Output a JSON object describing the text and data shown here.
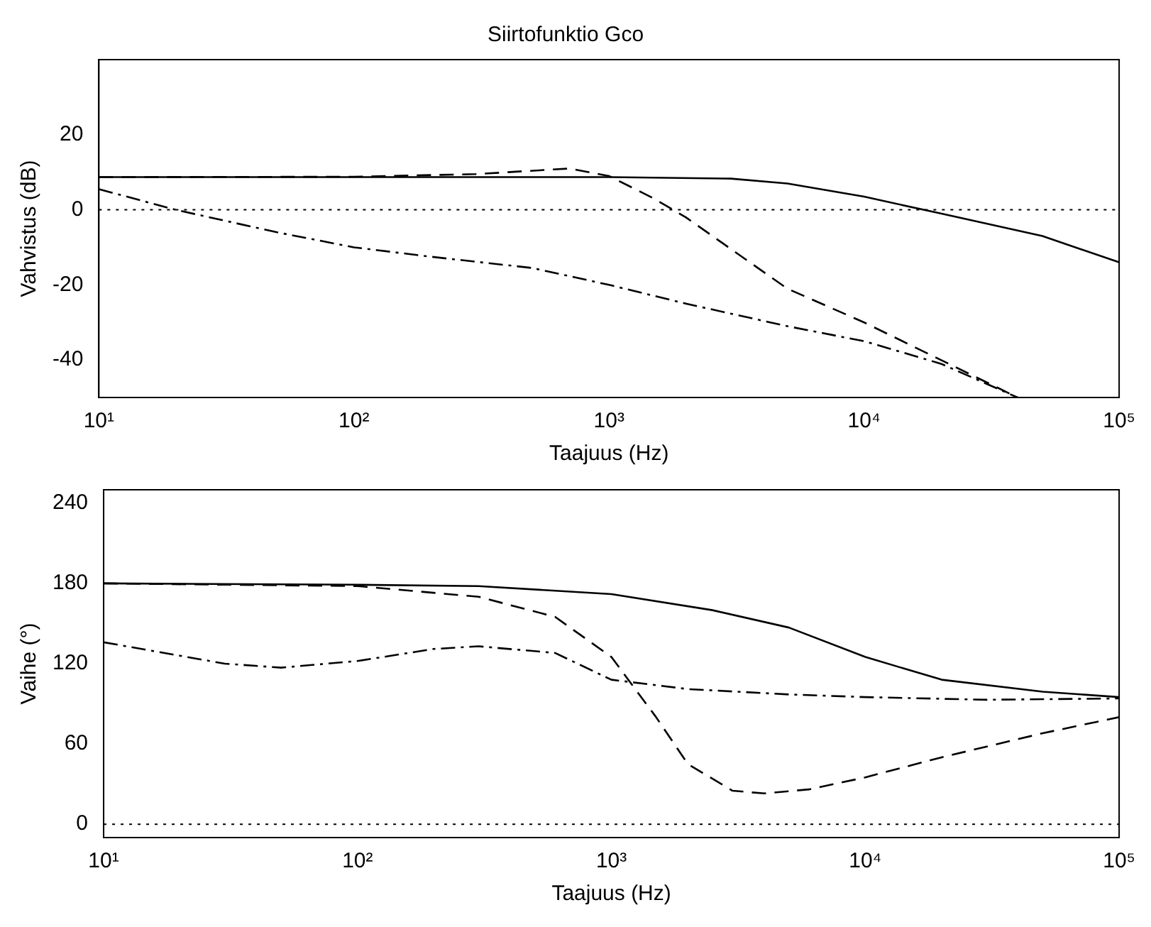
{
  "chart_data": [
    {
      "type": "line",
      "title": "Siirtofunktio Gco",
      "xlabel": "Taajuus (Hz)",
      "ylabel": "Vahvistus (dB)",
      "log": "x",
      "grid": false,
      "legend": false,
      "marker": "none",
      "xlim": [
        10,
        100000
      ],
      "xticks": [
        {
          "value": 10,
          "label": "10¹"
        },
        {
          "value": 100,
          "label": "10²"
        },
        {
          "value": 1000,
          "label": "10³"
        },
        {
          "value": 10000,
          "label": "10⁴"
        },
        {
          "value": 100000,
          "label": "10⁵"
        }
      ],
      "ylim": [
        -50,
        40
      ],
      "yticks": [
        -40,
        -20,
        0,
        20
      ],
      "ref_lines": [
        {
          "axis": "y",
          "value": 0,
          "color": "#000000",
          "line_style": "dotted"
        }
      ],
      "series": [
        {
          "color": "#000000",
          "line_style": "solid",
          "x": [
            10,
            100,
            1000,
            3000,
            5000,
            10000,
            20000,
            50000,
            100000
          ],
          "values": [
            8.7,
            8.7,
            8.7,
            8.3,
            7,
            3.5,
            -1,
            -7,
            -14
          ]
        },
        {
          "color": "#000000",
          "line_style": "dashed",
          "x": [
            10,
            100,
            300,
            700,
            1000,
            1500,
            2000,
            5000,
            10000,
            20000,
            40000
          ],
          "values": [
            8.7,
            8.8,
            9.5,
            11,
            9,
            3,
            -2,
            -21,
            -30,
            -40,
            -50
          ]
        },
        {
          "color": "#000000",
          "line_style": "dashdot",
          "x": [
            10,
            20,
            50,
            100,
            200,
            500,
            1000,
            2000,
            5000,
            10000,
            20000,
            40000
          ],
          "values": [
            5.5,
            0,
            -6,
            -10,
            -12.5,
            -15.5,
            -20,
            -25,
            -31,
            -35,
            -41,
            -50
          ]
        }
      ]
    },
    {
      "type": "line",
      "xlabel": "Taajuus (Hz)",
      "ylabel": "Vaihe (°)",
      "log": "x",
      "grid": false,
      "legend": false,
      "marker": "none",
      "xlim": [
        10,
        100000
      ],
      "xticks": [
        {
          "value": 10,
          "label": "10¹"
        },
        {
          "value": 100,
          "label": "10²"
        },
        {
          "value": 1000,
          "label": "10³"
        },
        {
          "value": 10000,
          "label": "10⁴"
        },
        {
          "value": 100000,
          "label": "10⁵"
        }
      ],
      "ylim": [
        -10,
        250
      ],
      "yticks": [
        0,
        60,
        120,
        180,
        240
      ],
      "ref_lines": [
        {
          "axis": "y",
          "value": 0,
          "color": "#000000",
          "line_style": "dotted"
        }
      ],
      "series": [
        {
          "color": "#000000",
          "line_style": "solid",
          "x": [
            10,
            100,
            300,
            1000,
            2500,
            5000,
            10000,
            20000,
            50000,
            100000
          ],
          "values": [
            180,
            179,
            178,
            172,
            160,
            147,
            125,
            108,
            99,
            95
          ]
        },
        {
          "color": "#000000",
          "line_style": "dashed",
          "x": [
            10,
            100,
            300,
            600,
            1000,
            1500,
            2000,
            3000,
            4000,
            6000,
            10000,
            20000,
            50000,
            100000
          ],
          "values": [
            180,
            178,
            170,
            155,
            125,
            80,
            45,
            25,
            23,
            26,
            35,
            50,
            68,
            80
          ]
        },
        {
          "color": "#000000",
          "line_style": "dashdot",
          "x": [
            10,
            30,
            50,
            100,
            200,
            300,
            600,
            1000,
            2000,
            5000,
            10000,
            30000,
            100000
          ],
          "values": [
            136,
            120,
            117,
            122,
            131,
            133,
            128,
            108,
            101,
            97,
            95,
            93,
            94
          ]
        }
      ]
    }
  ]
}
